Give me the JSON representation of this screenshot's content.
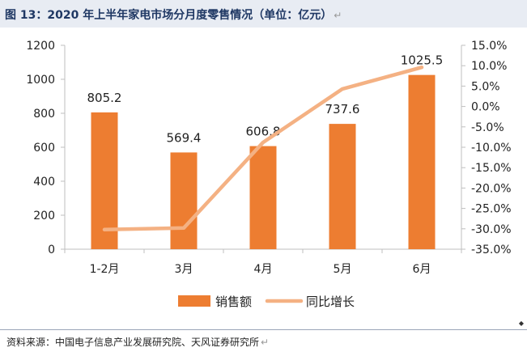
{
  "figure": {
    "title": "图 13：2020 年上半年家电市场分月度零售情况（单位：亿元）",
    "source": "资料来源：中国电子信息产业发展研究院、天风证券研究所",
    "return_mark": "↵"
  },
  "chart_data": {
    "type": "bar",
    "title": "",
    "categories": [
      "1-2月",
      "3月",
      "4月",
      "5月",
      "6月"
    ],
    "series": [
      {
        "name": "销售额",
        "type": "bar",
        "axis": "left",
        "color": "#ed7d31",
        "values": [
          805.2,
          569.4,
          606.8,
          737.6,
          1025.5
        ],
        "data_labels": [
          "805.2",
          "569.4",
          "606.8",
          "737.6",
          "1025.5"
        ]
      },
      {
        "name": "同比增长",
        "type": "line",
        "axis": "right",
        "color": "#f4b183",
        "values": [
          -30.2,
          -29.8,
          -8.8,
          4.3,
          9.6
        ]
      }
    ],
    "y_left": {
      "min": 0,
      "max": 1200,
      "step": 200,
      "ticks": [
        "0",
        "200",
        "400",
        "600",
        "800",
        "1000",
        "1200"
      ]
    },
    "y_right": {
      "min": -35,
      "max": 15,
      "step": 5,
      "ticks": [
        "-35.0%",
        "-30.0%",
        "-25.0%",
        "-20.0%",
        "-15.0%",
        "-10.0%",
        "-5.0%",
        "0.0%",
        "5.0%",
        "10.0%",
        "15.0%"
      ]
    },
    "grid": false,
    "legend": "bottom"
  }
}
